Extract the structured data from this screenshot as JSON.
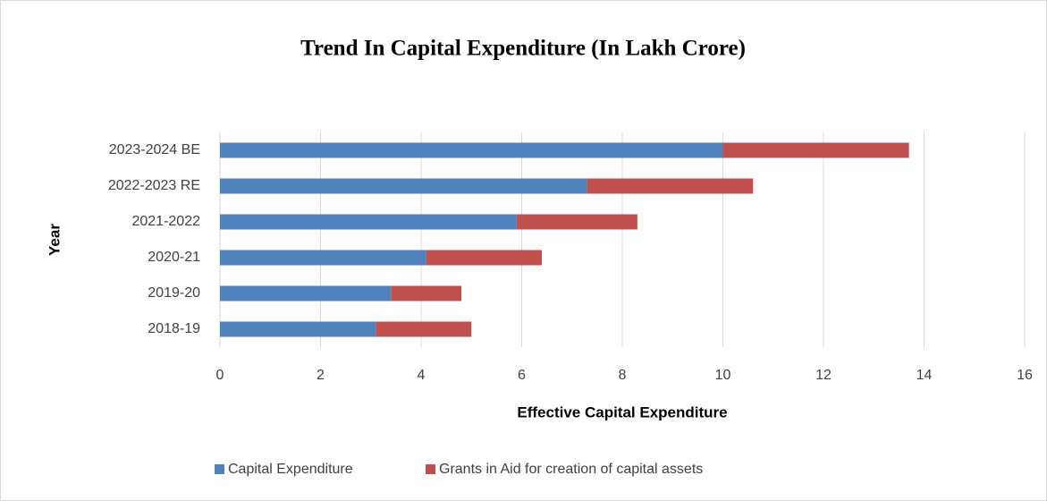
{
  "chart_data": {
    "type": "stacked_horizontal_bar",
    "title": "Trend In Capital Expenditure (In Lakh Crore)",
    "x_label": "Effective Capital Expenditure",
    "y_label": "Year",
    "categories": [
      "2018-19",
      "2019-20",
      "2020-21",
      "2021-2022",
      "2022-2023 RE",
      "2023-2024  BE"
    ],
    "series": [
      {
        "name": "Capital Expenditure",
        "color": "#4f81bd",
        "values": [
          3.1,
          3.4,
          4.1,
          5.9,
          7.3,
          10
        ]
      },
      {
        "name": "Grants in Aid for creation of capital assets",
        "color": "#c0504d",
        "values": [
          1.9,
          1.4,
          2.3,
          2.4,
          3.3,
          3.7
        ]
      }
    ],
    "xlim": [
      0,
      16
    ],
    "xticks": [
      0,
      2,
      4,
      6,
      8,
      10,
      12,
      14,
      16
    ],
    "grid": true,
    "legend": "bottom"
  }
}
